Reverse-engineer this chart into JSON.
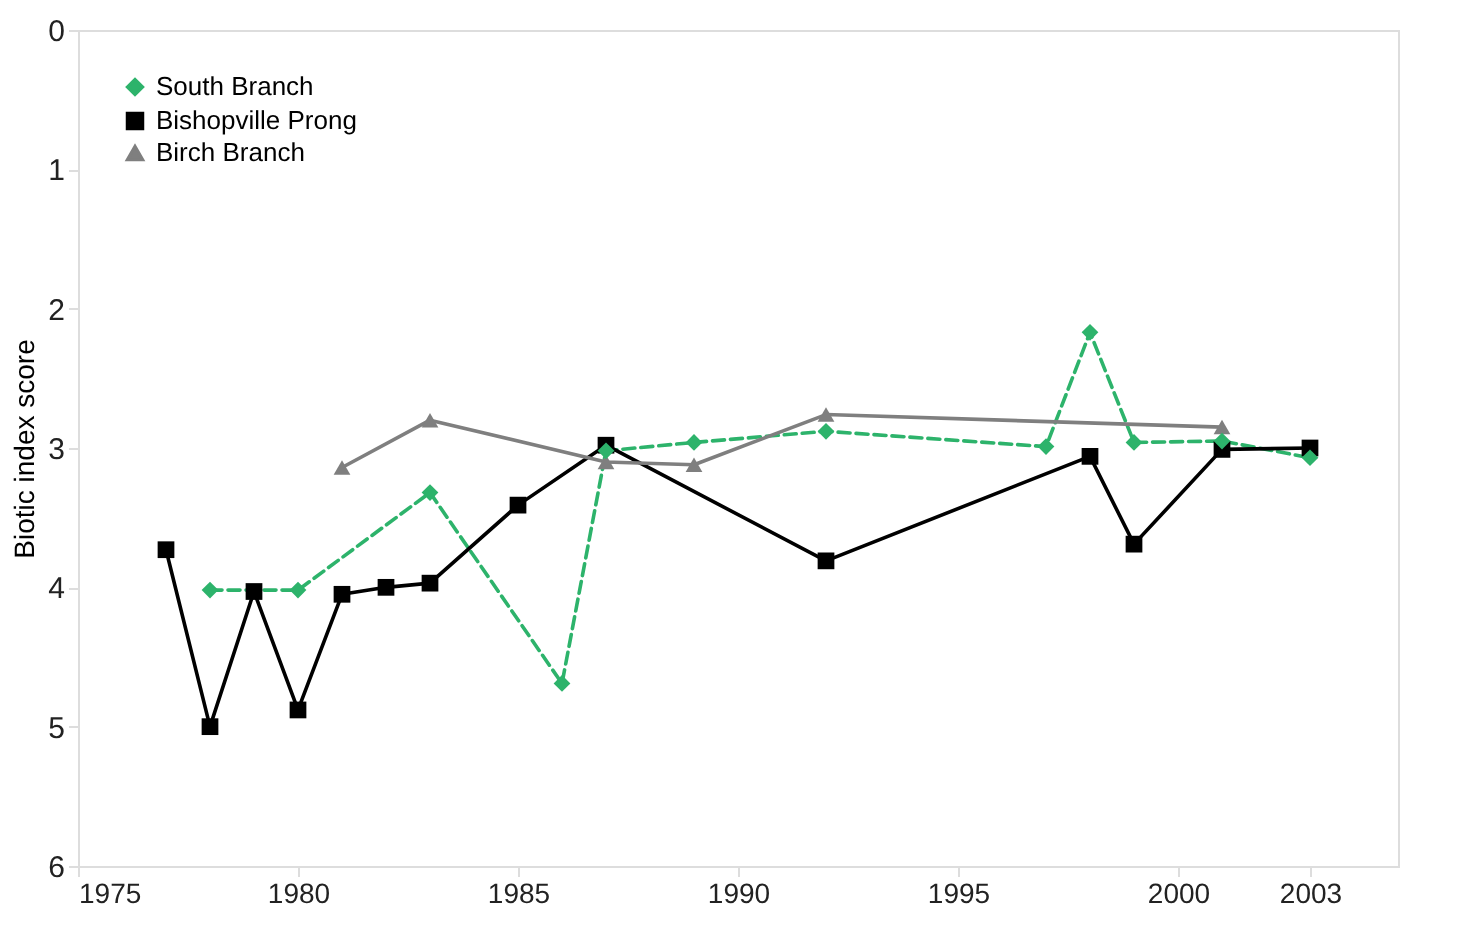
{
  "chart_data": {
    "type": "line",
    "ylabel": "Biotic index score",
    "xlim": [
      1975,
      2005
    ],
    "xticks": [
      1975,
      1980,
      1985,
      1990,
      1995,
      2000,
      2003
    ],
    "ylim": [
      6,
      0
    ],
    "yticks": [
      0,
      1,
      2,
      3,
      4,
      5,
      6
    ],
    "grid": false,
    "legend": "top left",
    "series": [
      {
        "name": "South Branch",
        "color": "#2db36b",
        "marker": "diamond",
        "line_style": "dashed",
        "x": [
          1978,
          1980,
          1983,
          1986,
          1987,
          1989,
          1992,
          1997,
          1998,
          1999,
          2001,
          2003
        ],
        "values": [
          4.02,
          4.02,
          3.32,
          4.69,
          3.02,
          2.96,
          2.88,
          2.99,
          2.17,
          2.96,
          2.95,
          3.07
        ]
      },
      {
        "name": "Bishopville Prong",
        "color": "#000000",
        "marker": "square",
        "line_style": "solid",
        "x": [
          1977,
          1978,
          1979,
          1980,
          1981,
          1982,
          1983,
          1985,
          1987,
          1992,
          1998,
          1999,
          2001,
          2003
        ],
        "values": [
          3.73,
          5.0,
          4.03,
          4.88,
          4.05,
          4.0,
          3.97,
          3.41,
          2.98,
          3.81,
          3.06,
          3.69,
          3.01,
          3.0
        ]
      },
      {
        "name": "Birch Branch",
        "color": "#7f7f7f",
        "marker": "triangle",
        "line_style": "solid",
        "x": [
          1981,
          1983,
          1987,
          1989,
          1992,
          2001
        ],
        "values": [
          3.14,
          2.8,
          3.1,
          3.12,
          2.76,
          2.85
        ]
      }
    ]
  }
}
